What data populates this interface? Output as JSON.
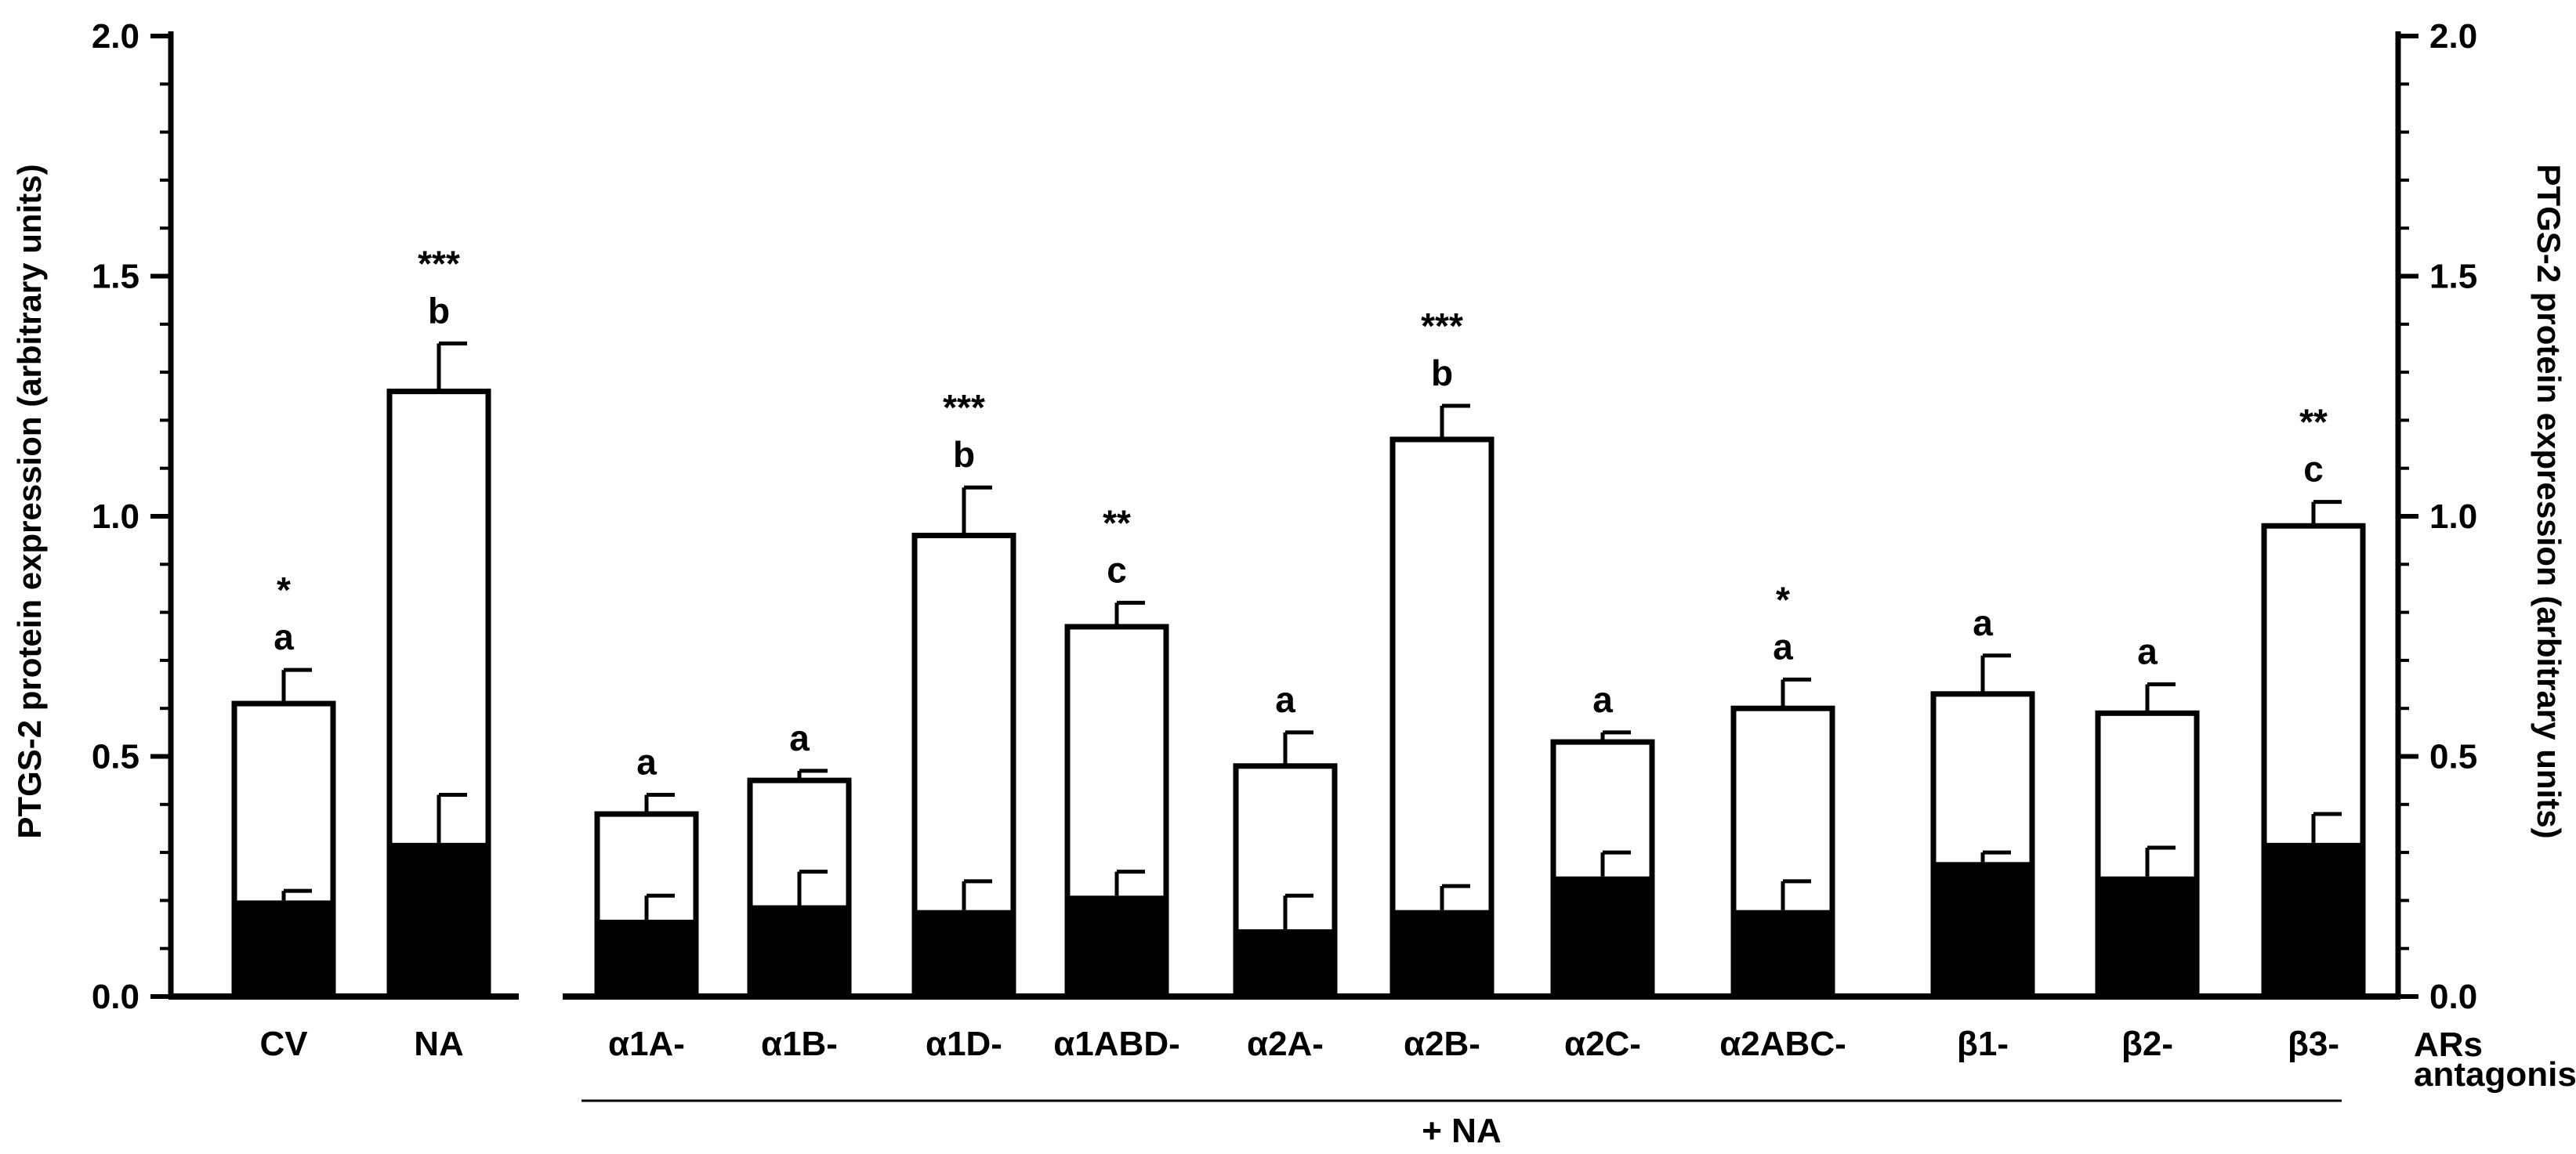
{
  "chart_data": {
    "type": "bar",
    "subtype": "overlaid-bars-with-error-bars",
    "ylabel_left": "PTGS-2 protein expression (arbitrary units)",
    "ylabel_right": "PTGS-2 protein expression (arbitrary units)",
    "ylim": [
      0,
      2.0
    ],
    "yticks": [
      "0.0",
      "0.5",
      "1.0",
      "1.5",
      "2.0"
    ],
    "ytick_values": [
      0,
      0.5,
      1.0,
      1.5,
      2.0
    ],
    "categories": [
      "CV",
      "NA",
      "α1A-",
      "α1B-",
      "α1D-",
      "α1ABD-",
      "α2A-",
      "α2B-",
      "α2C-",
      "α2ABC-",
      "β1-",
      "β2-",
      "β3-"
    ],
    "series": [
      {
        "name": "outline (white bars)",
        "fill": "#ffffff",
        "values": [
          0.61,
          1.26,
          0.38,
          0.45,
          0.96,
          0.77,
          0.48,
          1.16,
          0.53,
          0.6,
          0.63,
          0.59,
          0.98
        ],
        "errors": [
          0.07,
          0.1,
          0.04,
          0.02,
          0.1,
          0.05,
          0.07,
          0.07,
          0.02,
          0.06,
          0.08,
          0.06,
          0.05
        ]
      },
      {
        "name": "filled (black bars)",
        "fill": "#000000",
        "values": [
          0.2,
          0.32,
          0.16,
          0.19,
          0.18,
          0.21,
          0.14,
          0.18,
          0.25,
          0.18,
          0.28,
          0.25,
          0.32
        ],
        "errors": [
          0.02,
          0.1,
          0.05,
          0.07,
          0.06,
          0.05,
          0.07,
          0.05,
          0.05,
          0.06,
          0.02,
          0.06,
          0.06
        ]
      }
    ],
    "letters": [
      "a",
      "b",
      "a",
      "a",
      "b",
      "c",
      "a",
      "b",
      "a",
      "a",
      "a",
      "a",
      "c"
    ],
    "stars": [
      "*",
      "***",
      "",
      "",
      "***",
      "**",
      "",
      "***",
      "",
      "*",
      "",
      "",
      "**"
    ],
    "suffix_label_line1": "ARs",
    "suffix_label_line2": "antagonists",
    "group_label": "+ NA",
    "colors": {
      "ink": "#000000",
      "paper": "#ffffff"
    }
  }
}
